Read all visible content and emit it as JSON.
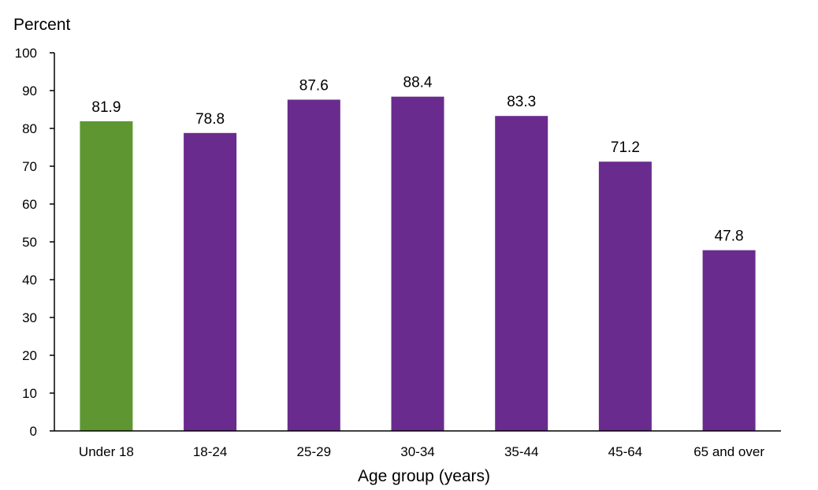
{
  "chart_data": {
    "type": "bar",
    "title": "",
    "ylabel": "Percent",
    "xlabel": "Age group (years)",
    "ylim": [
      0,
      100
    ],
    "yticks": [
      0,
      10,
      20,
      30,
      40,
      50,
      60,
      70,
      80,
      90,
      100
    ],
    "categories": [
      "Under 18",
      "18-24",
      "25-29",
      "30-34",
      "35-44",
      "45-64",
      "65 and over"
    ],
    "values": [
      81.9,
      78.8,
      87.6,
      88.4,
      83.3,
      71.2,
      47.8
    ],
    "value_labels": [
      "81.9",
      "78.8",
      "87.6",
      "88.4",
      "83.3",
      "71.2",
      "47.8"
    ],
    "colors": [
      "#5e9732",
      "#6a2b8e",
      "#6a2b8e",
      "#6a2b8e",
      "#6a2b8e",
      "#6a2b8e",
      "#6a2b8e"
    ],
    "grid": false,
    "legend": "none"
  }
}
